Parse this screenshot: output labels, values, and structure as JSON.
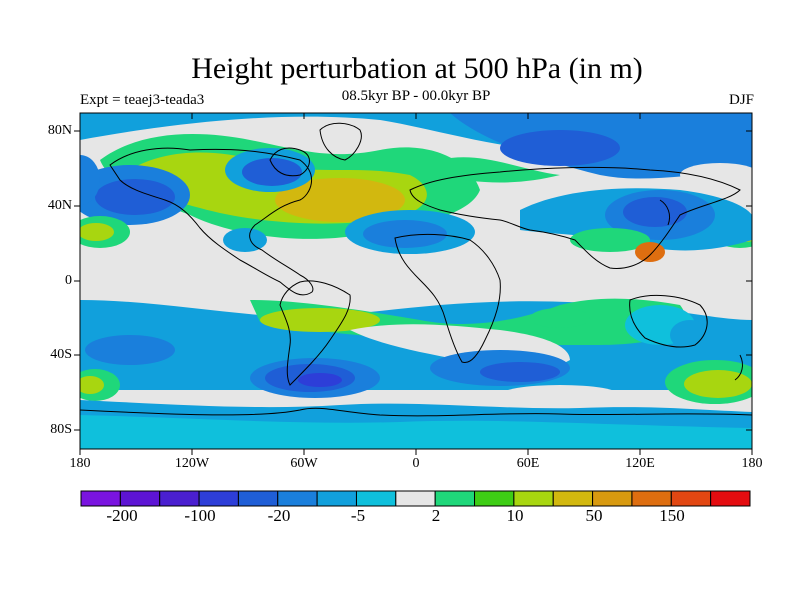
{
  "title": "Height perturbation at 500 hPa (in m)",
  "experiment": "Expt = teaej3-teada3",
  "period": "08.5kyr BP - 00.0kyr BP",
  "season": "DJF",
  "lat_ticks": [
    "80N",
    "40N",
    "0",
    "40S",
    "80S"
  ],
  "lon_ticks": [
    "180",
    "120W",
    "60W",
    "0",
    "60E",
    "120E",
    "180"
  ],
  "colorbar": {
    "labels": [
      "-200",
      "-100",
      "-20",
      "-5",
      "2",
      "10",
      "50",
      "150"
    ],
    "colors": [
      "#7a14e0",
      "#5d14d4",
      "#4a1fd0",
      "#2d3ed8",
      "#1f5ed6",
      "#1a7fdc",
      "#11a0dc",
      "#0fc0dc",
      "#e6e6e6",
      "#1fd77a",
      "#3ecd15",
      "#a8d610",
      "#d2b80f",
      "#d89a10",
      "#de6e10",
      "#e24712",
      "#e40c10"
    ]
  }
}
